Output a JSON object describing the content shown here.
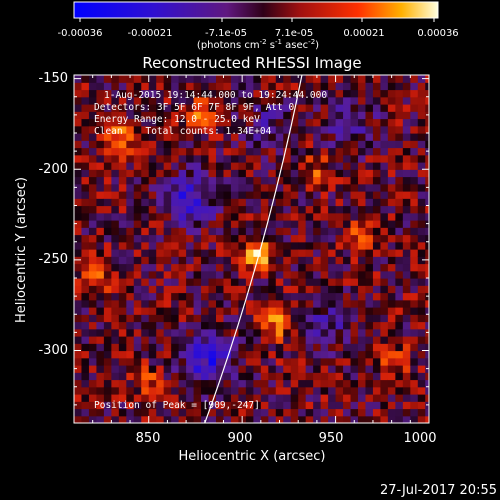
{
  "colorbar": {
    "ticks": [
      "-0.00036",
      "-0.00021",
      "-7.1e-05",
      "7.1e-05",
      "0.00021",
      "0.00036"
    ],
    "units_main": "(photons cm",
    "units_sup1": "-2",
    "units_s": " s",
    "units_sup2": "-1",
    "units_asec": " asec",
    "units_sup3": "-2",
    "units_close": ")"
  },
  "chart_data": {
    "type": "heatmap",
    "title": "Reconstructed RHESSI Image",
    "xlabel": "Heliocentric X (arcsec)",
    "ylabel": "Heliocentric Y (arcsec)",
    "xlim": [
      810,
      1000
    ],
    "ylim": [
      -340,
      -148
    ],
    "xticks": [
      "850",
      "900",
      "950",
      "1000"
    ],
    "xtick_values": [
      850,
      900,
      950,
      1000
    ],
    "yticks": [
      "-150",
      "-200",
      "-250",
      "-300"
    ],
    "ytick_values": [
      -150,
      -200,
      -250,
      -300
    ],
    "colorbar_range": [
      -0.00036,
      0.00036
    ],
    "peak": {
      "x": 909,
      "y": -247,
      "value": 0.00036
    },
    "limb_curve": [
      [
        880,
        -340
      ],
      [
        909,
        -247
      ],
      [
        932,
        -148
      ]
    ],
    "hot_spots": [
      {
        "x": 835,
        "y": -182,
        "value": 0.00022
      },
      {
        "x": 878,
        "y": -170,
        "value": 0.00018
      },
      {
        "x": 918,
        "y": -285,
        "value": 0.0002
      },
      {
        "x": 822,
        "y": -260,
        "value": 0.00018
      },
      {
        "x": 965,
        "y": -235,
        "value": 0.00016
      },
      {
        "x": 980,
        "y": -305,
        "value": 0.00017
      },
      {
        "x": 850,
        "y": -318,
        "value": 0.00014
      },
      {
        "x": 940,
        "y": -200,
        "value": 0.00014
      }
    ],
    "cold_spots": [
      {
        "x": 872,
        "y": -215,
        "value": -0.00022
      },
      {
        "x": 882,
        "y": -305,
        "value": -0.00024
      },
      {
        "x": 945,
        "y": -285,
        "value": -0.00014
      },
      {
        "x": 958,
        "y": -175,
        "value": -0.00012
      },
      {
        "x": 915,
        "y": -175,
        "value": -0.0001
      }
    ],
    "annotations": [
      "1-Aug-2015 19:14:44.000 to 19:24:44.000",
      "Detectors: 3F 5F 6F 7F 8F 9F, Att 0",
      "Energy Range: 12.0 - 25.0 keV",
      "Clean    Total counts: 1.34E+04"
    ],
    "peak_label": "Position of Peak = [909,-247]"
  },
  "footer": {
    "date": "27-Jul-2017 20:55"
  }
}
